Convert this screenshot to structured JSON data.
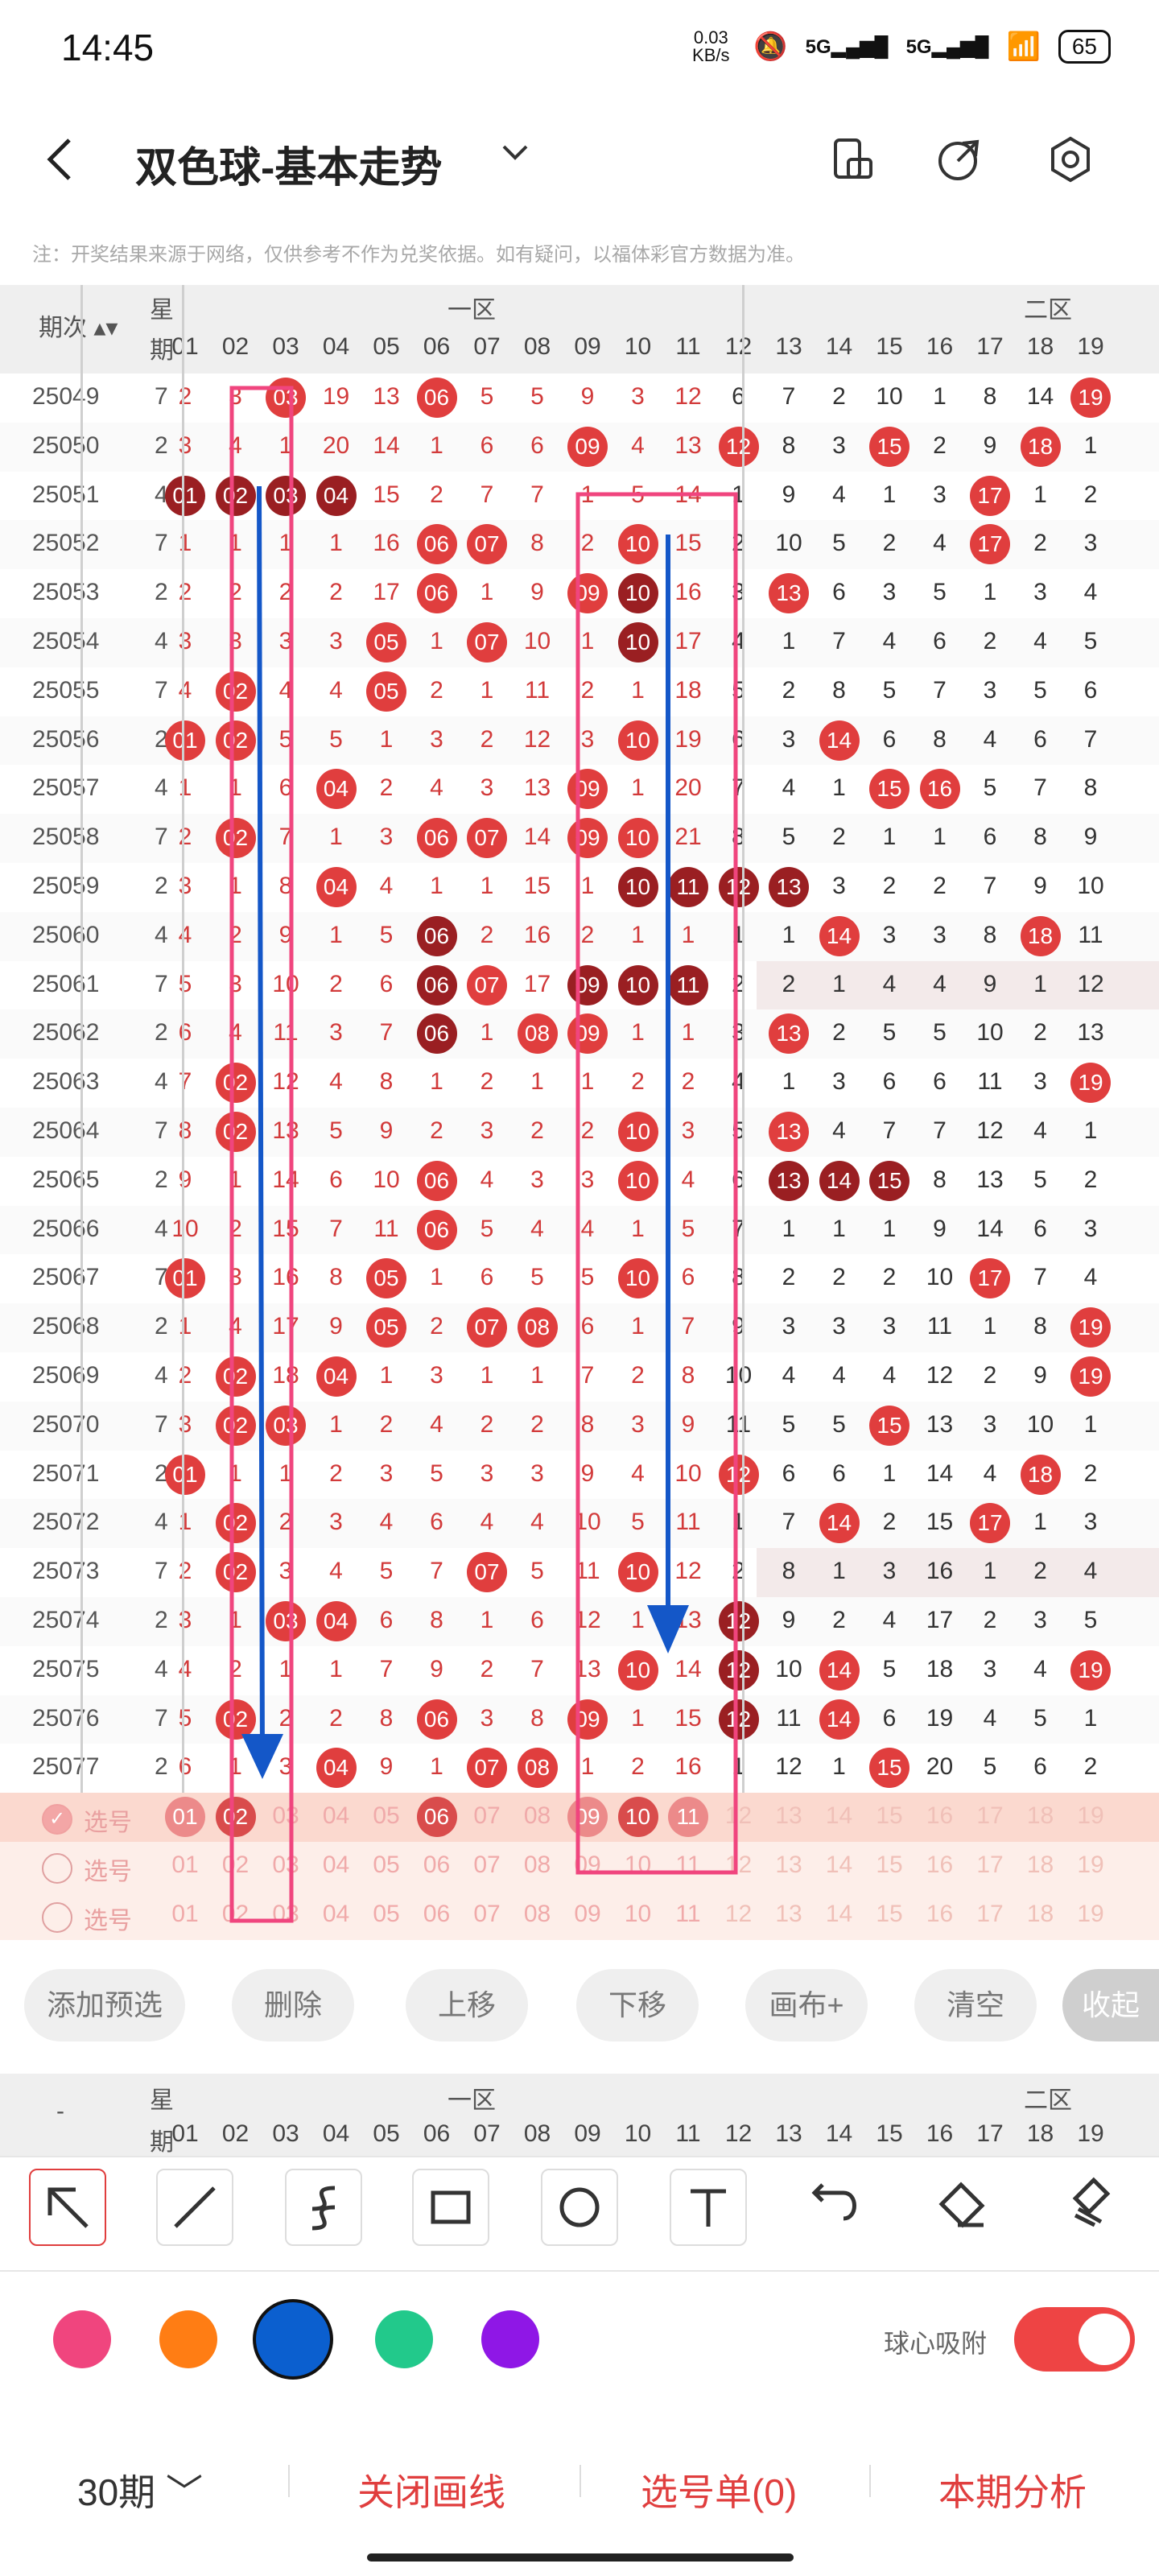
{
  "status": {
    "time": "14:45",
    "net_speed": "0.03\nKB/s",
    "sig1": "5G",
    "sig2": "5G",
    "battery": "65"
  },
  "header": {
    "title": "双色球-基本走势",
    "back_icon": "chevron-left-icon",
    "caret_icon": "chevron-down-icon"
  },
  "notice": "注：开奖结果来源于网络，仅供参考不作为兑奖依据。如有疑问，以福体彩官方数据为准。",
  "grid": {
    "col_issue": "期次",
    "col_week": [
      "星",
      "期"
    ],
    "zone1": "一区",
    "zone2": "二区",
    "nums_z1": [
      "01",
      "02",
      "03",
      "04",
      "05",
      "06",
      "07",
      "08",
      "09",
      "10",
      "11"
    ],
    "nums_z2": [
      "12",
      "13",
      "14",
      "15",
      "16",
      "17",
      "18",
      "19"
    ],
    "rows": [
      {
        "issue": "25049",
        "week": "7",
        "z1": [
          "2",
          "3",
          "03",
          "19",
          "13",
          "06",
          "5",
          "5",
          "9",
          "3",
          "12"
        ],
        "z2": [
          "6",
          "7",
          "2",
          "10",
          "1",
          "8",
          "14",
          "19"
        ]
      },
      {
        "issue": "25050",
        "week": "2",
        "z1": [
          "3",
          "4",
          "1",
          "20",
          "14",
          "1",
          "6",
          "6",
          "09",
          "4",
          "13"
        ],
        "z2": [
          "12",
          "8",
          "3",
          "15",
          "2",
          "9",
          "18",
          "1"
        ]
      },
      {
        "issue": "25051",
        "week": "4",
        "z1": [
          "01",
          "02",
          "03",
          "04",
          "15",
          "2",
          "7",
          "7",
          "1",
          "5",
          "14"
        ],
        "z2": [
          "1",
          "9",
          "4",
          "1",
          "3",
          "17",
          "1",
          "2"
        ]
      },
      {
        "issue": "25052",
        "week": "7",
        "z1": [
          "1",
          "1",
          "1",
          "1",
          "16",
          "06",
          "07",
          "8",
          "2",
          "10",
          "15"
        ],
        "z2": [
          "2",
          "10",
          "5",
          "2",
          "4",
          "17",
          "2",
          "3"
        ]
      },
      {
        "issue": "25053",
        "week": "2",
        "z1": [
          "2",
          "2",
          "2",
          "2",
          "17",
          "06",
          "1",
          "9",
          "09",
          "10",
          "16"
        ],
        "z2": [
          "3",
          "13",
          "6",
          "3",
          "5",
          "1",
          "3",
          "4"
        ]
      },
      {
        "issue": "25054",
        "week": "4",
        "z1": [
          "3",
          "3",
          "3",
          "3",
          "05",
          "1",
          "07",
          "10",
          "1",
          "10",
          "17"
        ],
        "z2": [
          "4",
          "1",
          "7",
          "4",
          "6",
          "2",
          "4",
          "5"
        ]
      },
      {
        "issue": "25055",
        "week": "7",
        "z1": [
          "4",
          "02",
          "4",
          "4",
          "05",
          "2",
          "1",
          "11",
          "2",
          "1",
          "18"
        ],
        "z2": [
          "5",
          "2",
          "8",
          "5",
          "7",
          "3",
          "5",
          "6"
        ]
      },
      {
        "issue": "25056",
        "week": "2",
        "z1": [
          "01",
          "02",
          "5",
          "5",
          "1",
          "3",
          "2",
          "12",
          "3",
          "10",
          "19"
        ],
        "z2": [
          "6",
          "3",
          "14",
          "6",
          "8",
          "4",
          "6",
          "7"
        ]
      },
      {
        "issue": "25057",
        "week": "4",
        "z1": [
          "1",
          "1",
          "6",
          "04",
          "2",
          "4",
          "3",
          "13",
          "09",
          "1",
          "20"
        ],
        "z2": [
          "7",
          "4",
          "1",
          "15",
          "16",
          "5",
          "7",
          "8"
        ]
      },
      {
        "issue": "25058",
        "week": "7",
        "z1": [
          "2",
          "02",
          "7",
          "1",
          "3",
          "06",
          "07",
          "14",
          "09",
          "10",
          "21"
        ],
        "z2": [
          "8",
          "5",
          "2",
          "1",
          "1",
          "6",
          "8",
          "9"
        ]
      },
      {
        "issue": "25059",
        "week": "2",
        "z1": [
          "3",
          "1",
          "8",
          "04",
          "4",
          "1",
          "1",
          "15",
          "1",
          "10",
          "11"
        ],
        "z2": [
          "12",
          "13",
          "3",
          "2",
          "2",
          "7",
          "9",
          "10"
        ]
      },
      {
        "issue": "25060",
        "week": "4",
        "z1": [
          "4",
          "2",
          "9",
          "1",
          "5",
          "06",
          "2",
          "16",
          "2",
          "1",
          "1"
        ],
        "z2": [
          "1",
          "1",
          "14",
          "3",
          "3",
          "8",
          "18",
          "11"
        ]
      },
      {
        "issue": "25061",
        "week": "7",
        "z1": [
          "5",
          "3",
          "10",
          "2",
          "6",
          "06",
          "07",
          "17",
          "09",
          "10",
          "11"
        ],
        "z2": [
          "2",
          "2",
          "1",
          "4",
          "4",
          "9",
          "1",
          "12"
        ]
      },
      {
        "issue": "25062",
        "week": "2",
        "z1": [
          "6",
          "4",
          "11",
          "3",
          "7",
          "06",
          "1",
          "08",
          "09",
          "1",
          "1"
        ],
        "z2": [
          "3",
          "13",
          "2",
          "5",
          "5",
          "10",
          "2",
          "13"
        ]
      },
      {
        "issue": "25063",
        "week": "4",
        "z1": [
          "7",
          "02",
          "12",
          "4",
          "8",
          "1",
          "2",
          "1",
          "1",
          "2",
          "2"
        ],
        "z2": [
          "4",
          "1",
          "3",
          "6",
          "6",
          "11",
          "3",
          "19"
        ]
      },
      {
        "issue": "25064",
        "week": "7",
        "z1": [
          "8",
          "02",
          "13",
          "5",
          "9",
          "2",
          "3",
          "2",
          "2",
          "10",
          "3"
        ],
        "z2": [
          "5",
          "13",
          "4",
          "7",
          "7",
          "12",
          "4",
          "1"
        ]
      },
      {
        "issue": "25065",
        "week": "2",
        "z1": [
          "9",
          "1",
          "14",
          "6",
          "10",
          "06",
          "4",
          "3",
          "3",
          "10",
          "4"
        ],
        "z2": [
          "6",
          "13",
          "14",
          "15",
          "8",
          "13",
          "5",
          "2"
        ]
      },
      {
        "issue": "25066",
        "week": "4",
        "z1": [
          "10",
          "2",
          "15",
          "7",
          "11",
          "06",
          "5",
          "4",
          "4",
          "1",
          "5"
        ],
        "z2": [
          "7",
          "1",
          "1",
          "1",
          "9",
          "14",
          "6",
          "3"
        ]
      },
      {
        "issue": "25067",
        "week": "7",
        "z1": [
          "01",
          "3",
          "16",
          "8",
          "05",
          "1",
          "6",
          "5",
          "5",
          "10",
          "6"
        ],
        "z2": [
          "8",
          "2",
          "2",
          "2",
          "10",
          "17",
          "7",
          "4"
        ]
      },
      {
        "issue": "25068",
        "week": "2",
        "z1": [
          "1",
          "4",
          "17",
          "9",
          "05",
          "2",
          "07",
          "08",
          "6",
          "1",
          "7"
        ],
        "z2": [
          "9",
          "3",
          "3",
          "3",
          "11",
          "1",
          "8",
          "19"
        ]
      },
      {
        "issue": "25069",
        "week": "4",
        "z1": [
          "2",
          "02",
          "18",
          "04",
          "1",
          "3",
          "1",
          "1",
          "7",
          "2",
          "8"
        ],
        "z2": [
          "10",
          "4",
          "4",
          "4",
          "12",
          "2",
          "9",
          "19"
        ]
      },
      {
        "issue": "25070",
        "week": "7",
        "z1": [
          "3",
          "02",
          "03",
          "1",
          "2",
          "4",
          "2",
          "2",
          "8",
          "3",
          "9"
        ],
        "z2": [
          "11",
          "5",
          "5",
          "15",
          "13",
          "3",
          "10",
          "1"
        ]
      },
      {
        "issue": "25071",
        "week": "2",
        "z1": [
          "01",
          "1",
          "1",
          "2",
          "3",
          "5",
          "3",
          "3",
          "9",
          "4",
          "10"
        ],
        "z2": [
          "12",
          "6",
          "6",
          "1",
          "14",
          "4",
          "18",
          "2"
        ]
      },
      {
        "issue": "25072",
        "week": "4",
        "z1": [
          "1",
          "02",
          "2",
          "3",
          "4",
          "6",
          "4",
          "4",
          "10",
          "5",
          "11"
        ],
        "z2": [
          "1",
          "7",
          "14",
          "2",
          "15",
          "17",
          "1",
          "3"
        ]
      },
      {
        "issue": "25073",
        "week": "7",
        "z1": [
          "2",
          "02",
          "3",
          "4",
          "5",
          "7",
          "07",
          "5",
          "11",
          "10",
          "12"
        ],
        "z2": [
          "2",
          "8",
          "1",
          "3",
          "16",
          "1",
          "2",
          "4"
        ]
      },
      {
        "issue": "25074",
        "week": "2",
        "z1": [
          "3",
          "1",
          "03",
          "04",
          "6",
          "8",
          "1",
          "6",
          "12",
          "1",
          "13"
        ],
        "z2": [
          "12",
          "9",
          "2",
          "4",
          "17",
          "2",
          "3",
          "5"
        ]
      },
      {
        "issue": "25075",
        "week": "4",
        "z1": [
          "4",
          "2",
          "1",
          "1",
          "7",
          "9",
          "2",
          "7",
          "13",
          "10",
          "14"
        ],
        "z2": [
          "12",
          "10",
          "14",
          "5",
          "18",
          "3",
          "4",
          "19"
        ]
      },
      {
        "issue": "25076",
        "week": "7",
        "z1": [
          "5",
          "02",
          "2",
          "2",
          "8",
          "06",
          "3",
          "8",
          "09",
          "1",
          "15"
        ],
        "z2": [
          "12",
          "11",
          "14",
          "6",
          "19",
          "4",
          "5",
          "1"
        ]
      },
      {
        "issue": "25077",
        "week": "2",
        "z1": [
          "6",
          "1",
          "3",
          "04",
          "9",
          "1",
          "07",
          "08",
          "1",
          "2",
          "16"
        ],
        "z2": [
          "1",
          "12",
          "1",
          "15",
          "20",
          "5",
          "6",
          "2"
        ]
      }
    ],
    "select_label": "选号",
    "select_rows": [
      {
        "checked": true,
        "balls": [
          "01",
          "02",
          "06",
          "09",
          "10",
          "11"
        ]
      },
      {
        "checked": false,
        "balls": []
      },
      {
        "checked": false,
        "balls": []
      }
    ]
  },
  "actions": {
    "add": "添加预选",
    "delete": "删除",
    "up": "上移",
    "down": "下移",
    "canvas": "画布+",
    "clear": "清空",
    "collapse": "收起"
  },
  "footer_header": {
    "dash": "-"
  },
  "tools": [
    "select-arrow-icon",
    "line-icon",
    "curve-icon",
    "rectangle-icon",
    "circle-icon",
    "text-icon",
    "undo-icon",
    "eraser-icon",
    "clear-canvas-icon"
  ],
  "colors": {
    "pink": "#f0457e",
    "orange": "#ff7d14",
    "blue": "#0b5fcf",
    "green": "#22c98b",
    "purple": "#8f17e6",
    "accent": "#e03e3e"
  },
  "snap": {
    "label": "球心吸附",
    "on": true
  },
  "bottom": {
    "period": "30期",
    "close_line": "关闭画线",
    "select_list": "选号单(0)",
    "analysis": "本期分析"
  }
}
